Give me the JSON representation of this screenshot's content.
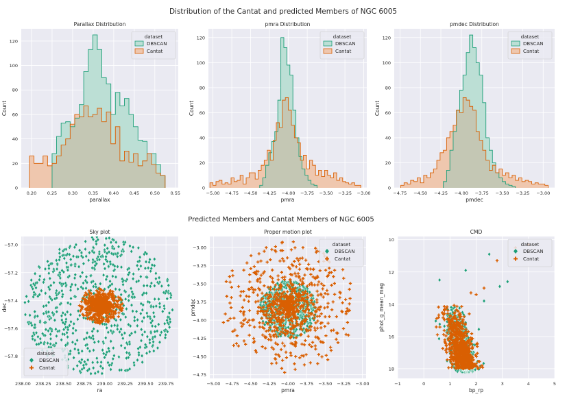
{
  "figure": {
    "suptitle_top": "Distribution of the Cantat and predicted Members of NGC 6005",
    "suptitle_bottom": "Predicted Members and Cantat Members of NGC 6005"
  },
  "colors": {
    "dbscan": "#1b9e77",
    "cantat": "#d95f02",
    "dbscan_fill": "#bcdfd5",
    "cantat_fill": "#efc7ae",
    "overlap_fill": "#c4c7b4",
    "panel_bg": "#eaeaf2",
    "grid": "#ffffff",
    "text": "#262626"
  },
  "chart_data": [
    {
      "id": "parallax",
      "type": "histogram",
      "title": "Parallax Distribution",
      "xlabel": "parallax",
      "ylabel": "Count",
      "xlim": [
        0.175,
        0.557
      ],
      "ylim": [
        0,
        130
      ],
      "xticks": [
        0.2,
        0.25,
        0.3,
        0.35,
        0.4,
        0.45,
        0.5,
        0.55
      ],
      "xtick_labels": [
        "0.20",
        "0.25",
        "0.30",
        "0.35",
        "0.40",
        "0.45",
        "0.50",
        "0.55"
      ],
      "yticks": [
        0,
        20,
        40,
        60,
        80,
        100,
        120
      ],
      "ytick_labels": [
        "0",
        "20",
        "40",
        "60",
        "80",
        "100",
        "120"
      ],
      "legend_title": "dataset",
      "legend": [
        "DBSCAN",
        "Cantat"
      ],
      "legend_position": "top-right",
      "series": [
        {
          "name": "DBSCAN",
          "edges": [
            0.25,
            0.261,
            0.272,
            0.283,
            0.294,
            0.305,
            0.316,
            0.327,
            0.338,
            0.349,
            0.36,
            0.371,
            0.382,
            0.393,
            0.404,
            0.415,
            0.426,
            0.437,
            0.448,
            0.459,
            0.47,
            0.481,
            0.492,
            0.503,
            0.514,
            0.525
          ],
          "counts": [
            28,
            42,
            53,
            54,
            50,
            57,
            68,
            95,
            113,
            125,
            113,
            90,
            85,
            60,
            78,
            67,
            73,
            60,
            50,
            39,
            38,
            28,
            28,
            19,
            10
          ]
        },
        {
          "name": "Cantat",
          "edges": [
            0.195,
            0.206,
            0.217,
            0.228,
            0.239,
            0.25,
            0.261,
            0.272,
            0.283,
            0.294,
            0.305,
            0.316,
            0.327,
            0.338,
            0.349,
            0.36,
            0.371,
            0.382,
            0.393,
            0.404,
            0.415,
            0.426,
            0.437,
            0.448,
            0.459,
            0.47,
            0.481,
            0.492,
            0.503,
            0.514,
            0.525
          ],
          "counts": [
            26,
            20,
            20,
            26,
            18,
            20,
            26,
            35,
            40,
            52,
            60,
            58,
            67,
            58,
            60,
            65,
            54,
            62,
            36,
            50,
            22,
            30,
            21,
            28,
            18,
            22,
            28,
            19,
            12,
            10
          ]
        }
      ]
    },
    {
      "id": "pmra",
      "type": "histogram",
      "title": "pmra Distribution",
      "xlabel": "pmra",
      "ylabel": "Count",
      "xlim": [
        -5.06,
        -2.96
      ],
      "ylim": [
        0,
        127
      ],
      "xticks": [
        -5.0,
        -4.75,
        -4.5,
        -4.25,
        -4.0,
        -3.75,
        -3.5,
        -3.25,
        -3.0
      ],
      "xtick_labels": [
        "−5.00",
        "−4.75",
        "−4.50",
        "−4.25",
        "−4.00",
        "−3.75",
        "−3.50",
        "−3.25",
        "−3.00"
      ],
      "yticks": [
        0,
        20,
        40,
        60,
        80,
        100,
        120
      ],
      "ytick_labels": [
        "0",
        "20",
        "40",
        "60",
        "80",
        "100",
        "120"
      ],
      "legend_title": "dataset",
      "legend": [
        "DBSCAN",
        "Cantat"
      ],
      "legend_position": "top-right",
      "series": [
        {
          "name": "DBSCAN",
          "edges": [
            -4.38,
            -4.34,
            -4.3,
            -4.26,
            -4.22,
            -4.18,
            -4.14,
            -4.1,
            -4.06,
            -4.02,
            -3.98,
            -3.94,
            -3.9,
            -3.86,
            -3.82,
            -3.78,
            -3.74,
            -3.7,
            -3.66,
            -3.62
          ],
          "counts": [
            2,
            8,
            18,
            28,
            37,
            45,
            70,
            120,
            112,
            98,
            90,
            62,
            40,
            25,
            15,
            10,
            6,
            3,
            2
          ]
        },
        {
          "name": "Cantat",
          "edges": [
            -5.04,
            -5.0,
            -4.96,
            -4.92,
            -4.88,
            -4.84,
            -4.8,
            -4.76,
            -4.72,
            -4.68,
            -4.64,
            -4.6,
            -4.56,
            -4.52,
            -4.48,
            -4.44,
            -4.4,
            -4.36,
            -4.32,
            -4.28,
            -4.24,
            -4.2,
            -4.16,
            -4.12,
            -4.08,
            -4.04,
            -4.0,
            -3.96,
            -3.92,
            -3.88,
            -3.84,
            -3.8,
            -3.76,
            -3.72,
            -3.68,
            -3.64,
            -3.6,
            -3.56,
            -3.52,
            -3.48,
            -3.44,
            -3.4,
            -3.36,
            -3.32,
            -3.28,
            -3.24,
            -3.2,
            -3.16,
            -3.12,
            -3.08,
            -3.04
          ],
          "counts": [
            4,
            2,
            5,
            6,
            3,
            4,
            3,
            8,
            5,
            6,
            10,
            3,
            8,
            12,
            12,
            7,
            14,
            18,
            22,
            30,
            22,
            38,
            52,
            48,
            70,
            72,
            62,
            50,
            40,
            36,
            22,
            26,
            15,
            22,
            18,
            10,
            14,
            9,
            14,
            10,
            8,
            12,
            6,
            8,
            5,
            4,
            3,
            4,
            2,
            2
          ]
        }
      ]
    },
    {
      "id": "pmdec",
      "type": "histogram",
      "title": "pmdec Distribution",
      "xlabel": "pmdec",
      "ylabel": "Count",
      "xlim": [
        -4.82,
        -2.86
      ],
      "ylim": [
        0,
        127
      ],
      "xticks": [
        -4.75,
        -4.5,
        -4.25,
        -4.0,
        -3.75,
        -3.5,
        -3.25,
        -3.0
      ],
      "xtick_labels": [
        "−4.75",
        "−4.50",
        "−4.25",
        "−4.00",
        "−3.75",
        "−3.50",
        "−3.25",
        "−3.00"
      ],
      "yticks": [
        0,
        20,
        40,
        60,
        80,
        100,
        120
      ],
      "ytick_labels": [
        "0",
        "20",
        "40",
        "60",
        "80",
        "100",
        "120"
      ],
      "legend_title": "dataset",
      "legend": [
        "DBSCAN",
        "Cantat"
      ],
      "legend_position": "top-right",
      "series": [
        {
          "name": "DBSCAN",
          "edges": [
            -4.22,
            -4.18,
            -4.14,
            -4.1,
            -4.06,
            -4.02,
            -3.98,
            -3.94,
            -3.9,
            -3.86,
            -3.82,
            -3.78,
            -3.74,
            -3.7,
            -3.66,
            -3.62,
            -3.58,
            -3.54,
            -3.5,
            -3.46,
            -3.42,
            -3.38,
            -3.34
          ],
          "counts": [
            5,
            14,
            30,
            45,
            62,
            78,
            90,
            108,
            122,
            112,
            100,
            90,
            68,
            40,
            30,
            20,
            12,
            8,
            5,
            3,
            2,
            1
          ]
        },
        {
          "name": "Cantat",
          "edges": [
            -4.74,
            -4.7,
            -4.66,
            -4.62,
            -4.58,
            -4.54,
            -4.5,
            -4.46,
            -4.42,
            -4.38,
            -4.34,
            -4.3,
            -4.26,
            -4.22,
            -4.18,
            -4.14,
            -4.1,
            -4.06,
            -4.02,
            -3.98,
            -3.94,
            -3.9,
            -3.86,
            -3.82,
            -3.78,
            -3.74,
            -3.7,
            -3.66,
            -3.62,
            -3.58,
            -3.54,
            -3.5,
            -3.46,
            -3.42,
            -3.38,
            -3.34,
            -3.3,
            -3.26,
            -3.22,
            -3.18,
            -3.14,
            -3.1,
            -3.06,
            -3.02,
            -2.98,
            -2.94
          ],
          "counts": [
            2,
            4,
            3,
            6,
            5,
            8,
            4,
            10,
            8,
            12,
            15,
            22,
            28,
            30,
            40,
            45,
            50,
            62,
            60,
            72,
            70,
            65,
            62,
            45,
            38,
            30,
            22,
            14,
            18,
            12,
            15,
            10,
            12,
            8,
            10,
            6,
            8,
            5,
            6,
            5,
            3,
            4,
            3,
            3,
            2
          ]
        }
      ]
    },
    {
      "id": "sky",
      "type": "scatter",
      "title": "Sky plot",
      "xlabel": "ra",
      "ylabel": "dec",
      "xlim": [
        237.98,
        239.9
      ],
      "ylim": [
        -57.96,
        -56.94
      ],
      "xticks": [
        238.0,
        238.25,
        238.5,
        238.75,
        239.0,
        239.25,
        239.5,
        239.75
      ],
      "xtick_labels": [
        "238.00",
        "238.25",
        "238.50",
        "238.75",
        "239.00",
        "239.25",
        "239.50",
        "239.75"
      ],
      "yticks": [
        -57.0,
        -57.2,
        -57.4,
        -57.6,
        -57.8
      ],
      "ytick_labels": [
        "−57.0",
        "−57.2",
        "−57.4",
        "−57.6",
        "−57.8"
      ],
      "legend_title": "dataset",
      "legend": [
        "DBSCAN",
        "Cantat"
      ],
      "legend_position": "bottom-left",
      "generated": true,
      "series": [
        {
          "name": "DBSCAN",
          "marker": "diamond",
          "n": 700,
          "center": [
            238.93,
            -57.44
          ],
          "radius": [
            0.92,
            0.5
          ],
          "distribution": "uniform-disk"
        },
        {
          "name": "Cantat",
          "marker": "cross",
          "n": 750,
          "center": [
            238.95,
            -57.44
          ],
          "radius": [
            0.27,
            0.13
          ],
          "distribution": "dense-core"
        }
      ]
    },
    {
      "id": "propermotion",
      "type": "scatter",
      "title": "Proper motion plot",
      "xlabel": "pmra",
      "ylabel": "pmdec",
      "xlim": [
        -5.05,
        -2.95
      ],
      "ylim": [
        -4.8,
        -2.85
      ],
      "xticks": [
        -5.0,
        -4.75,
        -4.5,
        -4.25,
        -4.0,
        -3.75,
        -3.5,
        -3.25,
        -3.0
      ],
      "xtick_labels": [
        "−5.00",
        "−4.75",
        "−4.50",
        "−4.25",
        "−4.00",
        "−3.75",
        "−3.50",
        "−3.25",
        "−3.00"
      ],
      "yticks": [
        -3.0,
        -3.25,
        -3.5,
        -3.75,
        -4.0,
        -4.25,
        -4.5,
        -4.75
      ],
      "ytick_labels": [
        "−3.00",
        "−3.25",
        "−3.50",
        "−3.75",
        "−4.00",
        "−4.25",
        "−4.50",
        "−4.75"
      ],
      "legend_title": "dataset",
      "legend": [
        "DBSCAN",
        "Cantat"
      ],
      "legend_position": "top-right",
      "generated": true,
      "series": [
        {
          "name": "DBSCAN",
          "marker": "diamond",
          "n": 550,
          "center": [
            -4.0,
            -3.85
          ],
          "radius": [
            0.38,
            0.4
          ],
          "distribution": "uniform-disk"
        },
        {
          "name": "Cantat",
          "marker": "cross",
          "n": 850,
          "center": [
            -4.0,
            -3.82
          ],
          "radius": [
            0.9,
            0.9
          ],
          "distribution": "dense-core"
        }
      ]
    },
    {
      "id": "cmd",
      "type": "scatter",
      "title": "CMD",
      "xlabel": "bp_rp",
      "ylabel": "phot_g_mean_mag",
      "xlim": [
        -1,
        5
      ],
      "ylim": [
        18.6,
        9.8
      ],
      "y_inverted": true,
      "xticks": [
        -1,
        0,
        1,
        2,
        3,
        4,
        5
      ],
      "xtick_labels": [
        "−1",
        "0",
        "1",
        "2",
        "3",
        "4",
        "5"
      ],
      "yticks": [
        10,
        12,
        14,
        16,
        18
      ],
      "ytick_labels": [
        "10",
        "12",
        "14",
        "16",
        "18"
      ],
      "legend_title": "dataset",
      "legend": [
        "DBSCAN",
        "Cantat"
      ],
      "legend_position": "top-right",
      "generated": true,
      "series": [
        {
          "name": "DBSCAN",
          "marker": "diamond",
          "n": 650,
          "distribution": "main-sequence",
          "ms_line": [
            [
              1.05,
              14.0
            ],
            [
              1.65,
              18.2
            ]
          ],
          "spread": 0.22,
          "extra_points": [
            [
              0.6,
              12.5
            ],
            [
              1.6,
              11.9
            ],
            [
              2.5,
              10.9
            ],
            [
              2.9,
              12.9
            ],
            [
              3.2,
              12.6
            ],
            [
              2.3,
              13.8
            ]
          ]
        },
        {
          "name": "Cantat",
          "marker": "cross",
          "n": 700,
          "distribution": "main-sequence",
          "ms_line": [
            [
              1.0,
              14.0
            ],
            [
              1.6,
              18.0
            ]
          ],
          "spread": 0.3,
          "extra_points": [
            [
              3.5,
              10.5
            ],
            [
              4.0,
              10.3
            ],
            [
              2.8,
              11.3
            ],
            [
              2.0,
              13.4
            ],
            [
              2.3,
              13.0
            ],
            [
              1.8,
              13.3
            ]
          ]
        }
      ]
    }
  ]
}
